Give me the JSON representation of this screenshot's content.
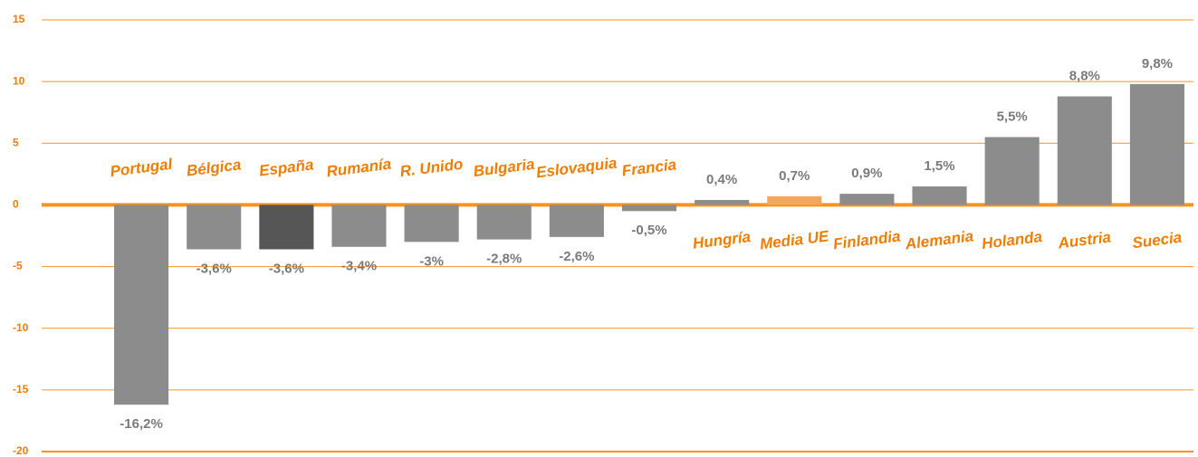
{
  "chart_data": {
    "type": "bar",
    "categories": [
      "Portugal",
      "Bélgica",
      "España",
      "Rumanía",
      "R. Unido",
      "Bulgaria",
      "Eslovaquia",
      "Francia",
      "Hungría",
      "Media UE",
      "Finlandia",
      "Alemania",
      "Holanda",
      "Austria",
      "Suecia"
    ],
    "values": [
      -16.2,
      -3.6,
      -3.6,
      -3.4,
      -3,
      -2.8,
      -2.6,
      -0.5,
      0.4,
      0.7,
      0.9,
      1.5,
      5.5,
      8.8,
      9.8
    ],
    "value_labels": [
      "-16,2%",
      "-3,6%",
      "-3,6%",
      "-3,4%",
      "-3%",
      "-2,8%",
      "-2,6%",
      "-0,5%",
      "0,4%",
      "0,7%",
      "0,9%",
      "1,5%",
      "5,5%",
      "8,8%",
      "9,8%"
    ],
    "colors": [
      "#8c8c8c",
      "#8c8c8c",
      "#565656",
      "#8c8c8c",
      "#8c8c8c",
      "#8c8c8c",
      "#8c8c8c",
      "#8c8c8c",
      "#8c8c8c",
      "#f5a65b",
      "#8c8c8c",
      "#8c8c8c",
      "#8c8c8c",
      "#8c8c8c",
      "#8c8c8c"
    ],
    "ylim": [
      -20,
      15
    ],
    "yticks": [
      -20,
      -15,
      -10,
      -5,
      0,
      5,
      10,
      15
    ],
    "grid": true
  }
}
